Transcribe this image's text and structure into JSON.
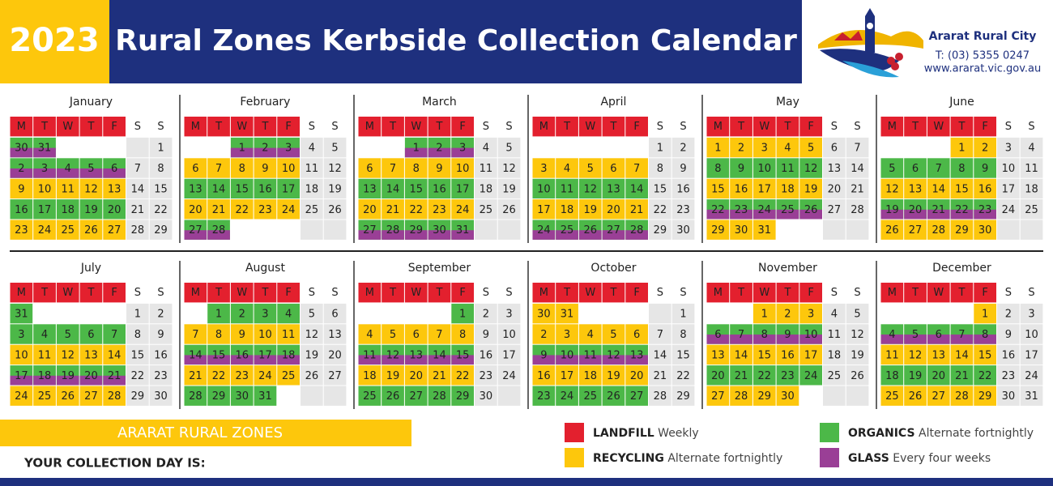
{
  "header": {
    "year": "2023",
    "title": "Rural Zones Kerbside Collection Calendar",
    "org": "Ararat Rural City",
    "phone": "T: (03) 5355 0247",
    "web": "www.ararat.vic.gov.au"
  },
  "weekdays": [
    "M",
    "T",
    "W",
    "T",
    "F",
    "S",
    "S"
  ],
  "months": [
    {
      "name": "January",
      "weeks": [
        [
          30,
          31,
          null,
          null,
          null,
          null,
          1
        ],
        [
          2,
          3,
          4,
          5,
          6,
          7,
          8
        ],
        [
          9,
          10,
          11,
          12,
          13,
          14,
          15
        ],
        [
          16,
          17,
          18,
          19,
          20,
          21,
          22
        ],
        [
          23,
          24,
          25,
          26,
          27,
          28,
          29
        ]
      ],
      "week_colors": [
        [
          "#4cb848",
          "#9a3f96"
        ],
        [
          "#4cb848",
          "#9a3f96"
        ],
        [
          "#fdc70c"
        ],
        [
          "#4cb848"
        ],
        [
          "#fdc70c"
        ]
      ]
    },
    {
      "name": "February",
      "weeks": [
        [
          null,
          null,
          1,
          2,
          3,
          4,
          5
        ],
        [
          6,
          7,
          8,
          9,
          10,
          11,
          12
        ],
        [
          13,
          14,
          15,
          16,
          17,
          18,
          19
        ],
        [
          20,
          21,
          22,
          23,
          24,
          25,
          26
        ],
        [
          27,
          28,
          null,
          null,
          null,
          null,
          null
        ]
      ],
      "week_colors": [
        [
          "#4cb848",
          "#9a3f96"
        ],
        [
          "#fdc70c"
        ],
        [
          "#4cb848"
        ],
        [
          "#fdc70c"
        ],
        [
          "#4cb848",
          "#9a3f96"
        ]
      ]
    },
    {
      "name": "March",
      "weeks": [
        [
          null,
          null,
          1,
          2,
          3,
          4,
          5
        ],
        [
          6,
          7,
          8,
          9,
          10,
          11,
          12
        ],
        [
          13,
          14,
          15,
          16,
          17,
          18,
          19
        ],
        [
          20,
          21,
          22,
          23,
          24,
          25,
          26
        ],
        [
          27,
          28,
          29,
          30,
          31,
          null,
          null
        ]
      ],
      "week_colors": [
        [
          "#4cb848",
          "#9a3f96"
        ],
        [
          "#fdc70c"
        ],
        [
          "#4cb848"
        ],
        [
          "#fdc70c"
        ],
        [
          "#4cb848",
          "#9a3f96"
        ]
      ]
    },
    {
      "name": "April",
      "weeks": [
        [
          null,
          null,
          null,
          null,
          null,
          1,
          2
        ],
        [
          3,
          4,
          5,
          6,
          7,
          8,
          9
        ],
        [
          10,
          11,
          12,
          13,
          14,
          15,
          16
        ],
        [
          17,
          18,
          19,
          20,
          21,
          22,
          23
        ],
        [
          24,
          25,
          26,
          27,
          28,
          29,
          30
        ]
      ],
      "week_colors": [
        null,
        [
          "#fdc70c"
        ],
        [
          "#4cb848"
        ],
        [
          "#fdc70c"
        ],
        [
          "#4cb848",
          "#9a3f96"
        ]
      ]
    },
    {
      "name": "May",
      "weeks": [
        [
          1,
          2,
          3,
          4,
          5,
          6,
          7
        ],
        [
          8,
          9,
          10,
          11,
          12,
          13,
          14
        ],
        [
          15,
          16,
          17,
          18,
          19,
          20,
          21
        ],
        [
          22,
          23,
          24,
          25,
          26,
          27,
          28
        ],
        [
          29,
          30,
          31,
          null,
          null,
          null,
          null
        ]
      ],
      "week_colors": [
        [
          "#fdc70c"
        ],
        [
          "#4cb848"
        ],
        [
          "#fdc70c"
        ],
        [
          "#4cb848",
          "#9a3f96"
        ],
        [
          "#fdc70c"
        ]
      ]
    },
    {
      "name": "June",
      "weeks": [
        [
          null,
          null,
          null,
          1,
          2,
          3,
          4
        ],
        [
          5,
          6,
          7,
          8,
          9,
          10,
          11
        ],
        [
          12,
          13,
          14,
          15,
          16,
          17,
          18
        ],
        [
          19,
          20,
          21,
          22,
          23,
          24,
          25
        ],
        [
          26,
          27,
          28,
          29,
          30,
          null,
          null
        ]
      ],
      "week_colors": [
        [
          "#fdc70c"
        ],
        [
          "#4cb848"
        ],
        [
          "#fdc70c"
        ],
        [
          "#4cb848",
          "#9a3f96"
        ],
        [
          "#fdc70c"
        ]
      ]
    },
    {
      "name": "July",
      "weeks": [
        [
          31,
          null,
          null,
          null,
          null,
          1,
          2
        ],
        [
          3,
          4,
          5,
          6,
          7,
          8,
          9
        ],
        [
          10,
          11,
          12,
          13,
          14,
          15,
          16
        ],
        [
          17,
          18,
          19,
          20,
          21,
          22,
          23
        ],
        [
          24,
          25,
          26,
          27,
          28,
          29,
          30
        ]
      ],
      "week_colors": [
        [
          "#4cb848"
        ],
        [
          "#4cb848"
        ],
        [
          "#fdc70c"
        ],
        [
          "#4cb848",
          "#9a3f96"
        ],
        [
          "#fdc70c"
        ]
      ]
    },
    {
      "name": "August",
      "weeks": [
        [
          null,
          1,
          2,
          3,
          4,
          5,
          6
        ],
        [
          7,
          8,
          9,
          10,
          11,
          12,
          13
        ],
        [
          14,
          15,
          16,
          17,
          18,
          19,
          20
        ],
        [
          21,
          22,
          23,
          24,
          25,
          26,
          27
        ],
        [
          28,
          29,
          30,
          31,
          null,
          null,
          null
        ]
      ],
      "week_colors": [
        [
          "#4cb848"
        ],
        [
          "#fdc70c"
        ],
        [
          "#4cb848",
          "#9a3f96"
        ],
        [
          "#fdc70c"
        ],
        [
          "#4cb848"
        ]
      ]
    },
    {
      "name": "September",
      "weeks": [
        [
          null,
          null,
          null,
          null,
          1,
          2,
          3
        ],
        [
          4,
          5,
          6,
          7,
          8,
          9,
          10
        ],
        [
          11,
          12,
          13,
          14,
          15,
          16,
          17
        ],
        [
          18,
          19,
          20,
          21,
          22,
          23,
          24
        ],
        [
          25,
          26,
          27,
          28,
          29,
          30,
          null
        ]
      ],
      "week_colors": [
        [
          "#4cb848"
        ],
        [
          "#fdc70c"
        ],
        [
          "#4cb848",
          "#9a3f96"
        ],
        [
          "#fdc70c"
        ],
        [
          "#4cb848"
        ]
      ]
    },
    {
      "name": "October",
      "weeks": [
        [
          30,
          31,
          null,
          null,
          null,
          null,
          1
        ],
        [
          2,
          3,
          4,
          5,
          6,
          7,
          8
        ],
        [
          9,
          10,
          11,
          12,
          13,
          14,
          15
        ],
        [
          16,
          17,
          18,
          19,
          20,
          21,
          22
        ],
        [
          23,
          24,
          25,
          26,
          27,
          28,
          29
        ]
      ],
      "week_colors": [
        [
          "#fdc70c"
        ],
        [
          "#fdc70c"
        ],
        [
          "#4cb848",
          "#9a3f96"
        ],
        [
          "#fdc70c"
        ],
        [
          "#4cb848"
        ]
      ]
    },
    {
      "name": "November",
      "weeks": [
        [
          null,
          null,
          1,
          2,
          3,
          4,
          5
        ],
        [
          6,
          7,
          8,
          9,
          10,
          11,
          12
        ],
        [
          13,
          14,
          15,
          16,
          17,
          18,
          19
        ],
        [
          20,
          21,
          22,
          23,
          24,
          25,
          26
        ],
        [
          27,
          28,
          29,
          30,
          null,
          null,
          null
        ]
      ],
      "week_colors": [
        [
          "#fdc70c"
        ],
        [
          "#4cb848",
          "#9a3f96"
        ],
        [
          "#fdc70c"
        ],
        [
          "#4cb848"
        ],
        [
          "#fdc70c"
        ]
      ]
    },
    {
      "name": "December",
      "weeks": [
        [
          null,
          null,
          null,
          null,
          1,
          2,
          3
        ],
        [
          4,
          5,
          6,
          7,
          8,
          9,
          10
        ],
        [
          11,
          12,
          13,
          14,
          15,
          16,
          17
        ],
        [
          18,
          19,
          20,
          21,
          22,
          23,
          24
        ],
        [
          25,
          26,
          27,
          28,
          29,
          30,
          31
        ]
      ],
      "week_colors": [
        [
          "#fdc70c"
        ],
        [
          "#4cb848",
          "#9a3f96"
        ],
        [
          "#fdc70c"
        ],
        [
          "#4cb848"
        ],
        [
          "#fdc70c"
        ]
      ]
    }
  ],
  "footer": {
    "zone": "ARARAT RURAL ZONES",
    "prompt": "YOUR COLLECTION DAY IS:"
  },
  "legend": [
    {
      "name": "LANDFILL",
      "desc": "Weekly",
      "color": "#e3202e"
    },
    {
      "name": "RECYCLING",
      "desc": "Alternate fortnightly",
      "color": "#fdc70c"
    },
    {
      "name": "ORGANICS",
      "desc": "Alternate fortnightly",
      "color": "#4cb848"
    },
    {
      "name": "GLASS",
      "desc": "Every four weeks",
      "color": "#9a3f96"
    }
  ]
}
